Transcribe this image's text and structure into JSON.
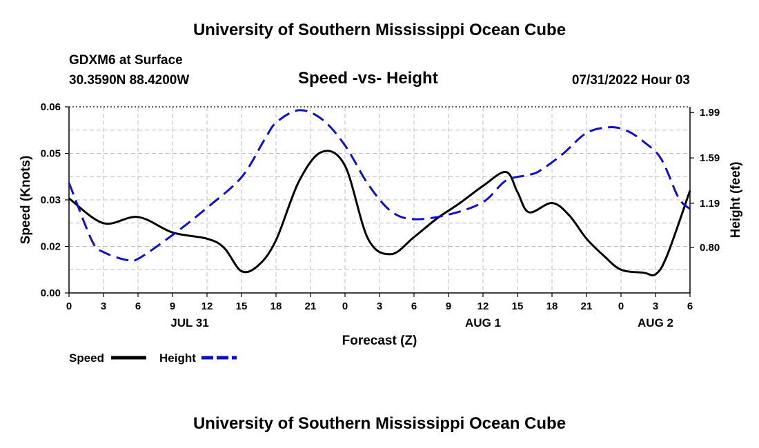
{
  "header": {
    "title": "University of Southern Mississippi Ocean Cube",
    "station": "GDXM6 at Surface",
    "coords": "30.3590N  88.4200W",
    "subtitle": "Speed -vs- Height",
    "datetime": "07/31/2022 Hour 03"
  },
  "footer": {
    "title": "University of Southern Mississippi Ocean Cube"
  },
  "legend": {
    "speed_label": "Speed",
    "height_label": "Height",
    "speed_color": "#000000",
    "height_color": "#1010c8"
  },
  "chart_data": {
    "type": "line",
    "title": "Speed -vs- Height",
    "xlabel": "Forecast (Z)",
    "ylabel": "Speed (Knots)",
    "y2label": "Height (feet)",
    "x_ticks": [
      "0",
      "3",
      "6",
      "9",
      "12",
      "15",
      "18",
      "21",
      "0",
      "3",
      "6",
      "9",
      "12",
      "15",
      "18",
      "21",
      "0",
      "3",
      "6"
    ],
    "date_labels": [
      {
        "label": "JUL 31",
        "tick_index": 3.5
      },
      {
        "label": "AUG 1",
        "tick_index": 12
      },
      {
        "label": "AUG 2",
        "tick_index": 17
      }
    ],
    "xlim": [
      0,
      54
    ],
    "ylim": [
      0,
      0.06
    ],
    "y_ticks": [
      "0.00",
      "0.02",
      "0.03",
      "0.05",
      "0.06"
    ],
    "y_tick_values": [
      0,
      0.015,
      0.03,
      0.045,
      0.06
    ],
    "y2lim": [
      0.4,
      2.04
    ],
    "y2_ticks": [
      "0.80",
      "1.19",
      "1.59",
      "1.99"
    ],
    "y2_tick_values": [
      0.8,
      1.19,
      1.59,
      1.99
    ],
    "grid": true,
    "series": [
      {
        "name": "Speed",
        "axis": "left",
        "style": "solid",
        "x": [
          0,
          3,
          6,
          9,
          12,
          13.5,
          15,
          16.5,
          18,
          20,
          22,
          24,
          26,
          28,
          30,
          32,
          34,
          36,
          38,
          39,
          40,
          42,
          43.5,
          45,
          46.5,
          48,
          50,
          51,
          52,
          54
        ],
        "values": [
          0.0305,
          0.0225,
          0.0245,
          0.0195,
          0.0175,
          0.0145,
          0.007,
          0.009,
          0.017,
          0.036,
          0.0455,
          0.041,
          0.0175,
          0.0125,
          0.018,
          0.024,
          0.029,
          0.0345,
          0.039,
          0.0325,
          0.026,
          0.029,
          0.025,
          0.0175,
          0.012,
          0.0075,
          0.0065,
          0.006,
          0.012,
          0.033
        ]
      },
      {
        "name": "Height",
        "axis": "right",
        "style": "dashed",
        "x": [
          0,
          2,
          3,
          5,
          6,
          9,
          12,
          15,
          17,
          18,
          20,
          22,
          24,
          26,
          28,
          30,
          33,
          36,
          38,
          40,
          41,
          43,
          45,
          47,
          48.5,
          50,
          51.5,
          53,
          54
        ],
        "values": [
          1.37,
          0.86,
          0.76,
          0.69,
          0.7,
          0.91,
          1.15,
          1.42,
          1.75,
          1.9,
          2.01,
          1.93,
          1.7,
          1.36,
          1.12,
          1.05,
          1.09,
          1.2,
          1.39,
          1.44,
          1.48,
          1.63,
          1.81,
          1.86,
          1.83,
          1.73,
          1.58,
          1.24,
          1.14
        ]
      }
    ]
  }
}
